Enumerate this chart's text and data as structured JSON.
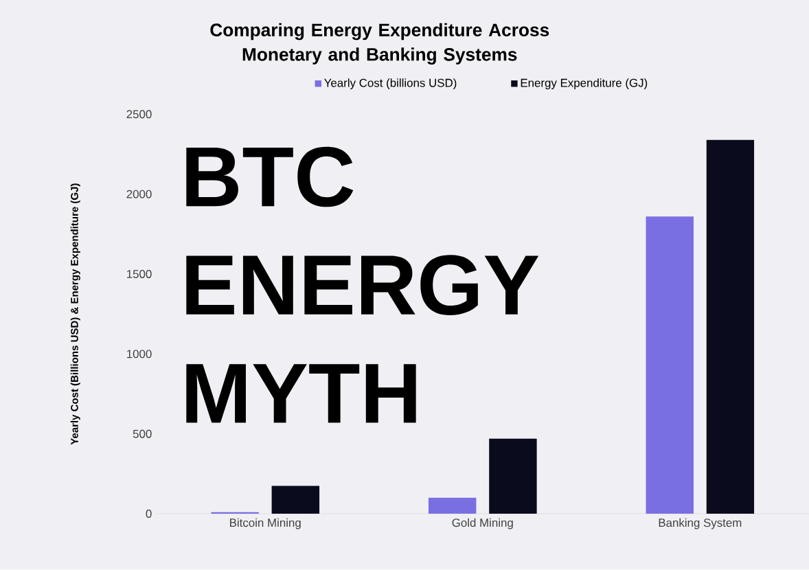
{
  "chart_data": {
    "type": "bar",
    "title": "Comparing Energy Expenditure Across Monetary and Banking Systems",
    "ylabel": "Yearly Cost (Billions USD) & Energy Expenditure (GJ)",
    "categories": [
      "Bitcoin Mining",
      "Gold Mining",
      "Banking System"
    ],
    "series": [
      {
        "name": "Yearly Cost (billions USD)",
        "color": "#7a6fe2",
        "values": [
          10,
          100,
          1860
        ]
      },
      {
        "name": "Energy Expenditure (GJ)",
        "color": "#0b0b1e",
        "values": [
          175,
          470,
          2340
        ]
      }
    ],
    "ylim": [
      0,
      2500
    ],
    "yticks": [
      0,
      500,
      1000,
      1500,
      2000,
      2500
    ],
    "legend": "top",
    "grid": false,
    "annotations": [
      "BTC ENERGY MYTH"
    ]
  }
}
